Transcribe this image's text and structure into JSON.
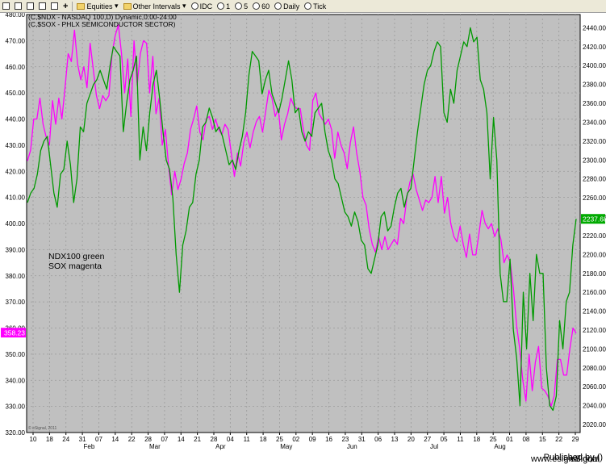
{
  "toolbar": {
    "items": [
      "Equities",
      "Other Intervals",
      "IDC",
      "1",
      "5",
      "60",
      "Daily",
      "Tick"
    ]
  },
  "chart_data": {
    "type": "line",
    "header_lines": [
      "(C,$NDX - NASDAQ 100,D) Dynamic,0:00-24:00",
      "(C,$SOX - PHLX SEMICONDUCTOR SECTOR)"
    ],
    "annotation": [
      "NDX100 green",
      "SOX magenta"
    ],
    "watermark": "© eSignal, 2011",
    "x_ticks": [
      "10",
      "18",
      "24",
      "31",
      "07",
      "14",
      "22",
      "28",
      "07",
      "14",
      "21",
      "28",
      "04",
      "11",
      "18",
      "25",
      "02",
      "09",
      "16",
      "23",
      "31",
      "06",
      "13",
      "20",
      "27",
      "05",
      "11",
      "18",
      "25",
      "01",
      "08",
      "15",
      "22",
      "29"
    ],
    "months": [
      {
        "label": "Feb",
        "tick": 4
      },
      {
        "label": "Mar",
        "tick": 8
      },
      {
        "label": "Apr",
        "tick": 12
      },
      {
        "label": "May",
        "tick": 16
      },
      {
        "label": "Jun",
        "tick": 20
      },
      {
        "label": "Jul",
        "tick": 25
      },
      {
        "label": "Aug",
        "tick": 29
      }
    ],
    "left_axis": {
      "ticks": [
        "480.00",
        "470.00",
        "460.00",
        "450.00",
        "440.00",
        "430.00",
        "420.00",
        "410.00",
        "400.00",
        "390.00",
        "380.00",
        "370.00",
        "360.00",
        "350.00",
        "340.00",
        "330.00",
        "320.00"
      ],
      "ylim": [
        320,
        480
      ],
      "last_value_label": "358.23",
      "last_value_color": "#ff00ff"
    },
    "right_axis": {
      "ticks": [
        "2440.00",
        "2420.00",
        "2400.00",
        "2380.00",
        "2360.00",
        "2340.00",
        "2320.00",
        "2300.00",
        "2280.00",
        "2260.00",
        "2240.00",
        "2220.00",
        "2200.00",
        "2180.00",
        "2160.00",
        "2140.00",
        "2120.00",
        "2100.00",
        "2080.00",
        "2060.00",
        "2040.00",
        "2020.00"
      ],
      "ylim": [
        2011.5,
        2454
      ],
      "last_value_label": "2237.68",
      "last_value_color": "#00aa00"
    },
    "grid": true,
    "series": [
      {
        "color": "#ff00ff",
        "axis": "left",
        "values": [
          424,
          428,
          440,
          440,
          448,
          438,
          433,
          430,
          447,
          438,
          448,
          440,
          452,
          465,
          462,
          474,
          461,
          455,
          460,
          452,
          469,
          459,
          449,
          444,
          449,
          447,
          449,
          465,
          472,
          476,
          465,
          450,
          463,
          441,
          470,
          453,
          465,
          470,
          469,
          450,
          464,
          442,
          448,
          430,
          436,
          422,
          411,
          420,
          413,
          417,
          423,
          427,
          436,
          440,
          445,
          435,
          432,
          440,
          441,
          436,
          440,
          436,
          434,
          438,
          436,
          427,
          418,
          427,
          422,
          431,
          435,
          429,
          435,
          439,
          441,
          435,
          443,
          451,
          448,
          441,
          444,
          432,
          438,
          442,
          448,
          445,
          444,
          444,
          436,
          430,
          428,
          447,
          450,
          442,
          440,
          438,
          440,
          436,
          425,
          435,
          430,
          427,
          421,
          431,
          437,
          427,
          420,
          410,
          407,
          398,
          392,
          389,
          395,
          390,
          395,
          390,
          392,
          394,
          392,
          402,
          400,
          410,
          416,
          419,
          413,
          409,
          405,
          409,
          408,
          410,
          418,
          408,
          418,
          404,
          410,
          400,
          395,
          393,
          399,
          392,
          387,
          396,
          388,
          388,
          396,
          405,
          400,
          398,
          400,
          395,
          398,
          394,
          385,
          388,
          385,
          375,
          361,
          352,
          340,
          332,
          350,
          336,
          347,
          353,
          337,
          336,
          334,
          330,
          334,
          348,
          348,
          342,
          342,
          352,
          360,
          358
        ]
      },
      {
        "color": "#009900",
        "axis": "right",
        "values": [
          2255,
          2265,
          2270,
          2285,
          2310,
          2320,
          2325,
          2295,
          2265,
          2250,
          2285,
          2290,
          2320,
          2295,
          2255,
          2280,
          2335,
          2330,
          2360,
          2370,
          2380,
          2385,
          2395,
          2385,
          2375,
          2400,
          2420,
          2415,
          2410,
          2330,
          2360,
          2385,
          2395,
          2410,
          2300,
          2335,
          2310,
          2350,
          2380,
          2395,
          2365,
          2330,
          2300,
          2290,
          2260,
          2200,
          2160,
          2210,
          2225,
          2250,
          2255,
          2285,
          2300,
          2335,
          2340,
          2355,
          2345,
          2330,
          2335,
          2325,
          2310,
          2295,
          2300,
          2290,
          2310,
          2325,
          2350,
          2390,
          2415,
          2410,
          2405,
          2370,
          2385,
          2395,
          2370,
          2360,
          2350,
          2365,
          2385,
          2405,
          2385,
          2350,
          2355,
          2330,
          2320,
          2330,
          2325,
          2350,
          2355,
          2360,
          2330,
          2310,
          2300,
          2280,
          2275,
          2260,
          2245,
          2240,
          2230,
          2245,
          2235,
          2215,
          2210,
          2185,
          2180,
          2195,
          2210,
          2240,
          2245,
          2225,
          2230,
          2250,
          2265,
          2270,
          2250,
          2265,
          2270,
          2300,
          2330,
          2355,
          2380,
          2395,
          2400,
          2415,
          2425,
          2420,
          2350,
          2340,
          2375,
          2360,
          2395,
          2410,
          2425,
          2420,
          2440,
          2425,
          2430,
          2385,
          2375,
          2350,
          2280,
          2345,
          2300,
          2180,
          2150,
          2150,
          2195,
          2120,
          2090,
          2040,
          2160,
          2100,
          2180,
          2130,
          2200,
          2180,
          2180,
          2080,
          2040,
          2035,
          2050,
          2130,
          2100,
          2150,
          2160,
          2210,
          2237.68
        ]
      }
    ]
  }
}
